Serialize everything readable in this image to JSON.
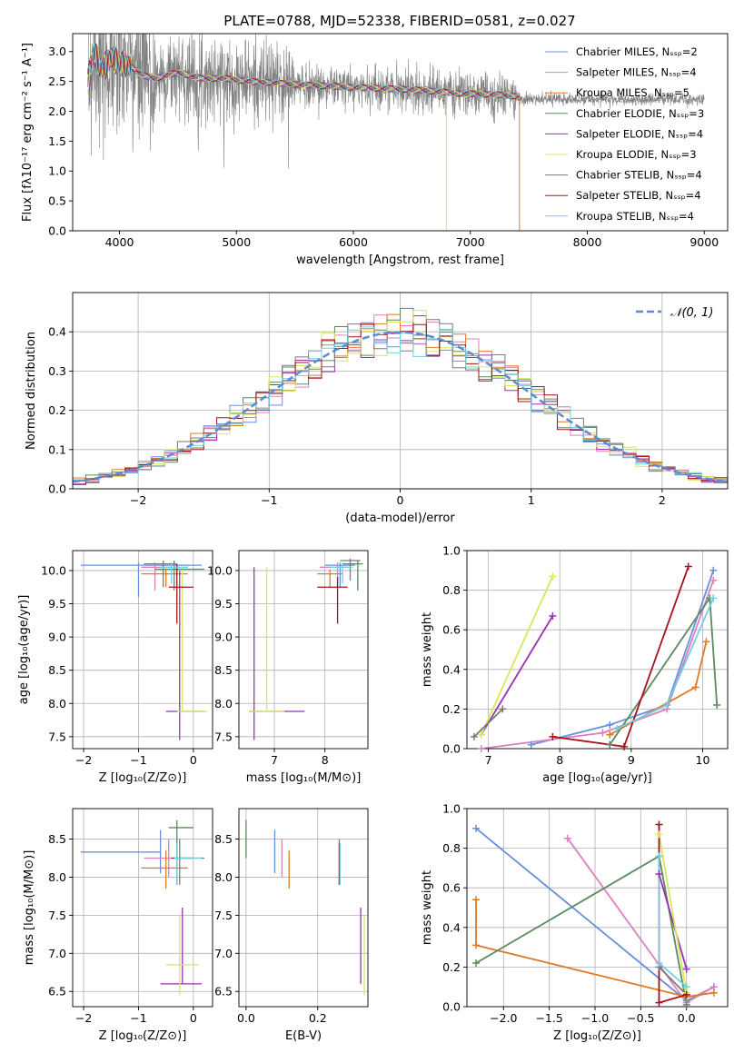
{
  "title": "PLATE=0788, MJD=52338, FIBERID=0581, z=0.027",
  "colors": [
    "#6a8fdc",
    "#e07fbf",
    "#e07b24",
    "#5b8a5f",
    "#9b30b5",
    "#d8e85a",
    "#7a7a7a",
    "#a8101a",
    "#6fd0e0"
  ],
  "chart_data": [
    {
      "id": "spectrum",
      "type": "line",
      "title": "PLATE=0788, MJD=52338, FIBERID=0581, z=0.027",
      "xlabel": "wavelength [Angstrom, rest frame]",
      "ylabel": "Flux [fλ10⁻¹⁷ erg cm⁻² s⁻¹ A⁻¹]",
      "xlim": [
        3600,
        9200
      ],
      "ylim": [
        0,
        3.3
      ],
      "xticks": [
        4000,
        5000,
        6000,
        7000,
        8000,
        9000
      ],
      "yticks": [
        0.0,
        0.5,
        1.0,
        1.5,
        2.0,
        2.5,
        3.0
      ],
      "legend": "top-right",
      "legend_entries": [
        "Chabrier MILES, Nₛₛₚ=2",
        "Salpeter MILES, Nₛₛₚ=4",
        "Kroupa MILES, Nₛₛₚ=5",
        "Chabrier ELODIE, Nₛₛₚ=3",
        "Salpeter ELODIE, Nₛₛₚ=4",
        "Kroupa ELODIE, Nₛₛₚ=3",
        "Chabrier STELIB, Nₛₛₚ=4",
        "Salpeter STELIB, Nₛₛₚ=4",
        "Kroupa STELIB, Nₛₛₚ=4"
      ],
      "model_curve": {
        "x": [
          3730,
          3780,
          3850,
          3930,
          4000,
          4100,
          4200,
          4300,
          4500,
          4700,
          4900,
          5100,
          5300,
          5500,
          5800,
          6000,
          6300,
          6600,
          6900,
          7200,
          7400
        ],
        "y": [
          2.5,
          3.0,
          2.7,
          2.9,
          2.8,
          2.75,
          2.6,
          2.55,
          2.65,
          2.55,
          2.55,
          2.5,
          2.48,
          2.45,
          2.42,
          2.4,
          2.38,
          2.35,
          2.3,
          2.28,
          2.25
        ]
      }
    },
    {
      "id": "residual_histogram",
      "type": "line",
      "xlabel": "(data-model)/error",
      "ylabel": "Normed distribution",
      "xlim": [
        -2.5,
        2.5
      ],
      "ylim": [
        0,
        0.5
      ],
      "xticks": [
        -2,
        -1,
        0,
        1,
        2
      ],
      "yticks": [
        0.0,
        0.1,
        0.2,
        0.3,
        0.4
      ],
      "legend": "top-right",
      "reference_label": "𝒩(0, 1)",
      "bin_edges_start": -2.5,
      "bin_width": 0.1
    },
    {
      "id": "age_vs_Z",
      "type": "scatter",
      "xlabel": "Z [log₁₀(Z/Z⊙)]",
      "ylabel": "age  [log₁₀(age/yr)]",
      "xlim": [
        -2.2,
        0.35
      ],
      "ylim": [
        7.32,
        10.3
      ],
      "xticks": [
        -2,
        -1,
        0
      ],
      "yticks": [
        7.5,
        8.0,
        8.5,
        9.0,
        9.5,
        10.0
      ],
      "points": [
        {
          "c": 0,
          "x": -1.0,
          "y": 10.08,
          "xl": -2.05,
          "xh": 0.15,
          "yl": 9.6,
          "yh": 10.12
        },
        {
          "c": 1,
          "x": -0.7,
          "y": 10.05,
          "xl": -0.95,
          "xh": -0.3,
          "yl": 9.7,
          "yh": 10.12
        },
        {
          "c": 2,
          "x": -0.5,
          "y": 9.95,
          "xl": -0.95,
          "xh": -0.1,
          "yl": 9.75,
          "yh": 10.02
        },
        {
          "c": 3,
          "x": -0.35,
          "y": 10.02,
          "xl": -0.7,
          "xh": 0.2,
          "yl": 9.7,
          "yh": 10.15
        },
        {
          "c": 4,
          "x": -0.25,
          "y": 7.88,
          "xl": -0.5,
          "xh": 0.2,
          "yl": 7.45,
          "yh": 10.0
        },
        {
          "c": 5,
          "x": -0.2,
          "y": 7.88,
          "xl": -0.3,
          "xh": 0.25,
          "yl": 7.9,
          "yh": 10.0
        },
        {
          "c": 6,
          "x": -0.55,
          "y": 10.1,
          "xl": -0.9,
          "xh": -0.3,
          "yl": 9.75,
          "yh": 10.15
        },
        {
          "c": 7,
          "x": -0.3,
          "y": 9.75,
          "xl": -0.45,
          "xh": 0.0,
          "yl": 9.2,
          "yh": 10.1
        },
        {
          "c": 8,
          "x": -0.4,
          "y": 10.05,
          "xl": -0.6,
          "xh": -0.1,
          "yl": 9.8,
          "yh": 10.12
        }
      ]
    },
    {
      "id": "age_vs_mass",
      "type": "scatter",
      "xlabel": "mass [log₁₀(M/M⊙)]",
      "ylabel": "",
      "xlim": [
        6.3,
        8.85
      ],
      "ylim": [
        7.32,
        10.3
      ],
      "xticks": [
        7,
        8
      ],
      "yticks": [
        7.5,
        8.0,
        8.5,
        9.0,
        9.5,
        10.0
      ],
      "points": [
        {
          "c": 0,
          "x": 8.3,
          "y": 10.08,
          "xl": 8.0,
          "xh": 8.6,
          "yl": 9.75,
          "yh": 10.12
        },
        {
          "c": 1,
          "x": 8.25,
          "y": 10.05,
          "xl": 7.9,
          "xh": 8.45,
          "yl": 9.8,
          "yh": 10.12
        },
        {
          "c": 2,
          "x": 8.1,
          "y": 9.95,
          "xl": 7.85,
          "xh": 8.35,
          "yl": 9.75,
          "yh": 10.02
        },
        {
          "c": 3,
          "x": 8.65,
          "y": 10.1,
          "xl": 8.35,
          "xh": 8.75,
          "yl": 9.7,
          "yh": 10.15
        },
        {
          "c": 4,
          "x": 6.6,
          "y": 7.88,
          "xl": 6.5,
          "xh": 7.6,
          "yl": 7.45,
          "yh": 10.05
        },
        {
          "c": 5,
          "x": 6.85,
          "y": 7.88,
          "xl": 6.5,
          "xh": 7.2,
          "yl": 7.9,
          "yh": 10.05
        },
        {
          "c": 6,
          "x": 8.5,
          "y": 10.15,
          "xl": 8.3,
          "xh": 8.7,
          "yl": 9.85,
          "yh": 10.18
        },
        {
          "c": 7,
          "x": 8.25,
          "y": 9.75,
          "xl": 7.85,
          "xh": 8.45,
          "yl": 9.2,
          "yh": 9.9
        },
        {
          "c": 8,
          "x": 8.35,
          "y": 10.05,
          "xl": 8.1,
          "xh": 8.55,
          "yl": 9.8,
          "yh": 10.12
        }
      ]
    },
    {
      "id": "weight_vs_age",
      "type": "line",
      "xlabel": "age  [log₁₀(age/yr)]",
      "ylabel": "mass weight",
      "xlim": [
        6.7,
        10.35
      ],
      "ylim": [
        0,
        1.0
      ],
      "xticks": [
        7,
        8,
        9,
        10
      ],
      "yticks": [
        0.0,
        0.2,
        0.4,
        0.6,
        0.8,
        1.0
      ],
      "series": [
        {
          "c": 0,
          "x": [
            7.6,
            8.7,
            9.5,
            10.15
          ],
          "y": [
            0.02,
            0.12,
            0.22,
            0.9
          ]
        },
        {
          "c": 1,
          "x": [
            6.9,
            8.6,
            9.5,
            10.15
          ],
          "y": [
            0.0,
            0.08,
            0.2,
            0.85
          ]
        },
        {
          "c": 2,
          "x": [
            8.7,
            9.9,
            10.05
          ],
          "y": [
            0.07,
            0.31,
            0.54
          ]
        },
        {
          "c": 3,
          "x": [
            8.7,
            10.1,
            10.2
          ],
          "y": [
            0.02,
            0.76,
            0.22
          ]
        },
        {
          "c": 4,
          "x": [
            6.9,
            7.9
          ],
          "y": [
            0.07,
            0.67
          ]
        },
        {
          "c": 5,
          "x": [
            6.9,
            7.9
          ],
          "y": [
            0.07,
            0.87
          ]
        },
        {
          "c": 6,
          "x": [
            6.8,
            7.2
          ],
          "y": [
            0.06,
            0.2
          ]
        },
        {
          "c": 7,
          "x": [
            7.9,
            8.9,
            9.8
          ],
          "y": [
            0.06,
            0.01,
            0.92
          ]
        },
        {
          "c": 8,
          "x": [
            8.8,
            9.5,
            10.15
          ],
          "y": [
            0.1,
            0.22,
            0.76
          ]
        }
      ]
    },
    {
      "id": "mass_vs_Z",
      "type": "scatter",
      "xlabel": "Z [log₁₀(Z/Z⊙)]",
      "ylabel": "mass [log₁₀(M/M⊙)]",
      "xlim": [
        -2.2,
        0.35
      ],
      "ylim": [
        6.3,
        8.9
      ],
      "xticks": [
        -2,
        -1,
        0
      ],
      "yticks": [
        6.5,
        7.0,
        7.5,
        8.0,
        8.5
      ],
      "points": [
        {
          "c": 0,
          "x": -0.6,
          "y": 8.33,
          "xl": -2.05,
          "xh": -0.6,
          "yl": 8.05,
          "yh": 8.62
        },
        {
          "c": 1,
          "x": -0.45,
          "y": 8.25,
          "xl": -0.9,
          "xh": -0.2,
          "yl": 8.0,
          "yh": 8.5
        },
        {
          "c": 2,
          "x": -0.5,
          "y": 8.12,
          "xl": -0.95,
          "xh": -0.1,
          "yl": 7.85,
          "yh": 8.35
        },
        {
          "c": 3,
          "x": -0.3,
          "y": 8.65,
          "xl": -0.45,
          "xh": 0.0,
          "yl": 8.35,
          "yh": 8.75
        },
        {
          "c": 4,
          "x": -0.2,
          "y": 6.6,
          "xl": -0.6,
          "xh": 0.15,
          "yl": 6.6,
          "yh": 7.6
        },
        {
          "c": 5,
          "x": -0.25,
          "y": 6.85,
          "xl": -0.5,
          "xh": 0.1,
          "yl": 6.45,
          "yh": 7.5
        },
        {
          "c": 6,
          "x": -0.25,
          "y": 8.25,
          "xl": -0.35,
          "xh": 0.2,
          "yl": 7.9,
          "yh": 8.5
        },
        {
          "c": 7,
          "x": -0.3,
          "y": 8.25,
          "xl": -0.4,
          "xh": 0.0,
          "yl": 7.9,
          "yh": 8.45
        },
        {
          "c": 8,
          "x": -0.3,
          "y": 8.25,
          "xl": -0.35,
          "xh": 0.15,
          "yl": 7.9,
          "yh": 8.45
        }
      ]
    },
    {
      "id": "mass_vs_ebv",
      "type": "scatter",
      "xlabel": "E(B-V)",
      "ylabel": "",
      "xlim": [
        -0.02,
        0.34
      ],
      "ylim": [
        6.3,
        8.9
      ],
      "xticks": [
        0.0,
        0.2
      ],
      "yticks": [
        6.5,
        7.0,
        7.5,
        8.0,
        8.5
      ],
      "bars": [
        {
          "c": 0,
          "x": 0.08,
          "yl": 8.05,
          "yh": 8.62
        },
        {
          "c": 1,
          "x": 0.1,
          "yl": 8.0,
          "yh": 8.5
        },
        {
          "c": 2,
          "x": 0.12,
          "yl": 7.85,
          "yh": 8.35
        },
        {
          "c": 3,
          "x": 0.0,
          "yl": 8.25,
          "yh": 8.75
        },
        {
          "c": 4,
          "x": 0.32,
          "yl": 6.6,
          "yh": 7.6
        },
        {
          "c": 5,
          "x": 0.33,
          "yl": 6.45,
          "yh": 7.5
        },
        {
          "c": 6,
          "x": 0.26,
          "yl": 7.9,
          "yh": 8.5
        },
        {
          "c": 7,
          "x": 0.26,
          "yl": 7.9,
          "yh": 8.45
        },
        {
          "c": 8,
          "x": 0.262,
          "yl": 7.9,
          "yh": 8.45
        }
      ]
    },
    {
      "id": "weight_vs_Z",
      "type": "line",
      "xlabel": "Z [log₁₀(Z/Z⊙)]",
      "ylabel": "mass weight",
      "xlim": [
        -2.4,
        0.45
      ],
      "ylim": [
        0,
        1.0
      ],
      "xticks": [
        -2.0,
        -1.5,
        -1.0,
        -0.5,
        0.0
      ],
      "yticks": [
        0.0,
        0.2,
        0.4,
        0.6,
        0.8,
        1.0
      ],
      "series": [
        {
          "c": 0,
          "x": [
            -2.3,
            0.0,
            0.3
          ],
          "y": [
            0.9,
            0.03,
            0.1
          ]
        },
        {
          "c": 1,
          "x": [
            -1.3,
            0.0,
            0.3
          ],
          "y": [
            0.85,
            0.02,
            0.1
          ]
        },
        {
          "c": 2,
          "x": [
            -2.3,
            -2.3,
            0.0,
            0.3
          ],
          "y": [
            0.54,
            0.31,
            0.05,
            0.07
          ]
        },
        {
          "c": 3,
          "x": [
            -2.3,
            -0.3,
            0.0
          ],
          "y": [
            0.22,
            0.76,
            0.01
          ]
        },
        {
          "c": 4,
          "x": [
            -0.3,
            0.0
          ],
          "y": [
            0.67,
            0.19
          ]
        },
        {
          "c": 5,
          "x": [
            -0.3,
            0.0
          ],
          "y": [
            0.87,
            0.07
          ]
        },
        {
          "c": 6,
          "x": [
            -0.3,
            0.0
          ],
          "y": [
            0.2,
            0.06
          ]
        },
        {
          "c": 7,
          "x": [
            -0.3,
            -0.3,
            0.0
          ],
          "y": [
            0.92,
            0.02,
            0.06
          ]
        },
        {
          "c": 8,
          "x": [
            -0.3,
            -0.3,
            0.0
          ],
          "y": [
            0.76,
            0.22,
            0.1
          ]
        }
      ]
    }
  ]
}
